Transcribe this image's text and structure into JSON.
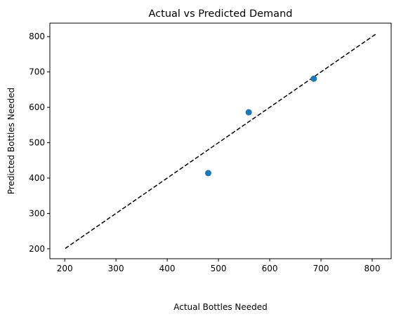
{
  "chart_data": {
    "type": "scatter",
    "title": "Actual vs Predicted Demand",
    "xlabel": "Actual Bottles Needed",
    "ylabel": "Predicted Bottles Needed",
    "xlim": [
      171,
      837
    ],
    "ylim": [
      172,
      838
    ],
    "xticks": [
      200,
      300,
      400,
      500,
      600,
      700,
      800
    ],
    "yticks": [
      200,
      300,
      400,
      500,
      600,
      700,
      800
    ],
    "grid": false,
    "series": [
      {
        "color": "#1f77b4",
        "points": [
          {
            "x": 480,
            "y": 414
          },
          {
            "x": 559,
            "y": 586
          },
          {
            "x": 686,
            "y": 681
          }
        ]
      }
    ],
    "reference_line": {
      "style": "dashed",
      "color": "#000000",
      "x": [
        201,
        807
      ],
      "y": [
        201,
        807
      ]
    }
  }
}
